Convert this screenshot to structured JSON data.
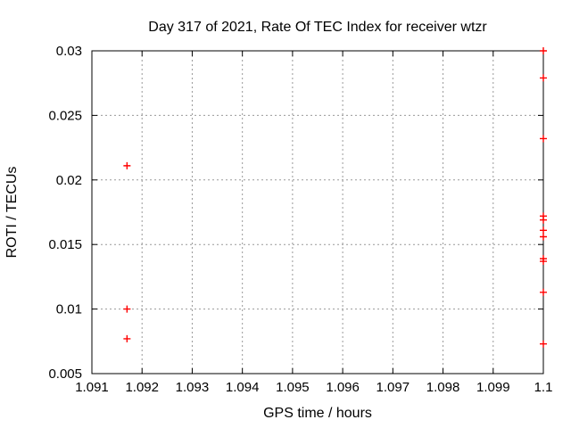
{
  "chart_data": {
    "type": "scatter",
    "title": "Day 317 of 2021, Rate Of TEC Index for receiver wtzr",
    "xlabel": "GPS time / hours",
    "ylabel": "ROTI / TECUs",
    "xlim": [
      1.091,
      1.1
    ],
    "ylim": [
      0.005,
      0.03
    ],
    "grid": true,
    "legend_position": "none",
    "xticks": [
      {
        "v": 1.091,
        "label": "1.091"
      },
      {
        "v": 1.092,
        "label": "1.092"
      },
      {
        "v": 1.093,
        "label": "1.093"
      },
      {
        "v": 1.094,
        "label": "1.094"
      },
      {
        "v": 1.095,
        "label": "1.095"
      },
      {
        "v": 1.096,
        "label": "1.096"
      },
      {
        "v": 1.097,
        "label": "1.097"
      },
      {
        "v": 1.098,
        "label": "1.098"
      },
      {
        "v": 1.099,
        "label": "1.099"
      },
      {
        "v": 1.1,
        "label": "1.1"
      }
    ],
    "yticks": [
      {
        "v": 0.005,
        "label": "0.005"
      },
      {
        "v": 0.01,
        "label": "0.01"
      },
      {
        "v": 0.015,
        "label": "0.015"
      },
      {
        "v": 0.02,
        "label": "0.02"
      },
      {
        "v": 0.025,
        "label": "0.025"
      },
      {
        "v": 0.03,
        "label": "0.03"
      }
    ],
    "marker": {
      "shape": "plus",
      "size": 8
    },
    "colors": {
      "marker": "#ff0000",
      "grid": "#999999",
      "axis": "#000000",
      "background": "#ffffff"
    },
    "series": [
      {
        "name": "ROTI",
        "points": [
          [
            1.0917,
            0.0211
          ],
          [
            1.0917,
            0.01
          ],
          [
            1.0917,
            0.0077
          ],
          [
            1.1,
            0.03
          ],
          [
            1.1,
            0.0279
          ],
          [
            1.1,
            0.0232
          ],
          [
            1.1,
            0.0172
          ],
          [
            1.1,
            0.0169
          ],
          [
            1.1,
            0.0161
          ],
          [
            1.1,
            0.0156
          ],
          [
            1.1,
            0.0139
          ],
          [
            1.1,
            0.0137
          ],
          [
            1.1,
            0.0113
          ],
          [
            1.1,
            0.0073
          ]
        ]
      }
    ]
  }
}
